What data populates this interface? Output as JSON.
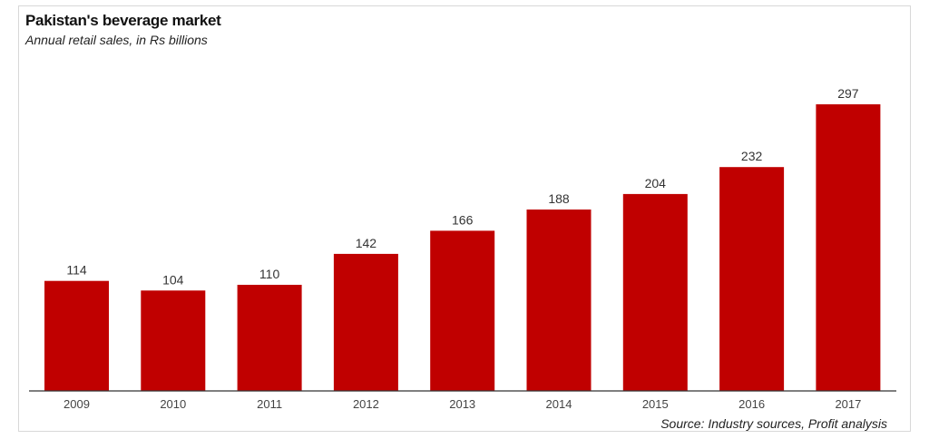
{
  "chart_data": {
    "type": "bar",
    "title": "Pakistan's beverage market",
    "subtitle": "Annual retail sales, in Rs billions",
    "source": "Source: Industry sources, Profit analysis",
    "categories": [
      "2009",
      "2010",
      "2011",
      "2012",
      "2013",
      "2014",
      "2015",
      "2016",
      "2017"
    ],
    "values": [
      114,
      104,
      110,
      142,
      166,
      188,
      204,
      232,
      297
    ],
    "xlabel": "",
    "ylabel": "",
    "ylim": [
      0,
      297
    ],
    "bar_color": "#c00000",
    "grid": false,
    "data_labels": true
  }
}
